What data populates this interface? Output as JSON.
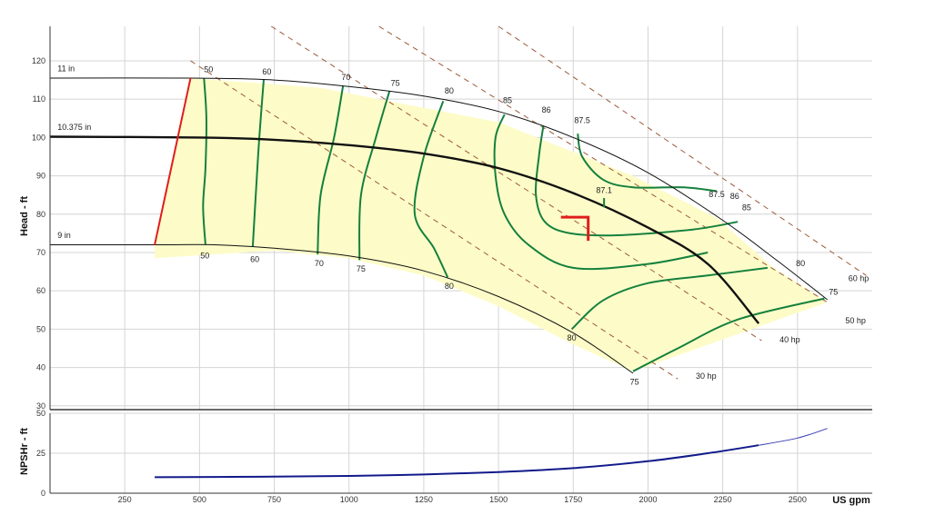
{
  "chart_data": [
    {
      "type": "line",
      "name": "head-chart",
      "ylabel": "Head - ft",
      "xlim": [
        0,
        2750
      ],
      "ylim": [
        29,
        129
      ],
      "x_ticks": [
        250,
        500,
        750,
        1000,
        1250,
        1500,
        1750,
        2000,
        2250,
        2500
      ],
      "y_ticks": [
        30,
        40,
        50,
        60,
        70,
        80,
        90,
        100,
        110,
        120
      ],
      "grid": true,
      "operating_region": [
        [
          350,
          72
        ],
        [
          470,
          115.5
        ],
        [
          900,
          113
        ],
        [
          1500,
          104
        ],
        [
          1950,
          90
        ],
        [
          2230,
          79
        ],
        [
          2420,
          66
        ],
        [
          2600,
          57
        ],
        [
          1950,
          39
        ],
        [
          1750,
          46
        ],
        [
          1500,
          56
        ],
        [
          1250,
          64
        ],
        [
          1000,
          68.5
        ],
        [
          750,
          70.5
        ],
        [
          350,
          68.5
        ]
      ],
      "impeller_curves": [
        {
          "label": "11 in",
          "points": [
            [
              0,
              115.5
            ],
            [
              470,
              115.5
            ],
            [
              750,
              115
            ],
            [
              1000,
              113.3
            ],
            [
              1250,
              110.8
            ],
            [
              1500,
              106.8
            ],
            [
              1750,
              100
            ],
            [
              2000,
              90.8
            ],
            [
              2250,
              78.4
            ],
            [
              2430,
              68
            ],
            [
              2600,
              57.7
            ]
          ]
        },
        {
          "label": "10.375 in",
          "points": [
            [
              0,
              100.2
            ],
            [
              500,
              100
            ],
            [
              750,
              99.4
            ],
            [
              1000,
              98
            ],
            [
              1250,
              95.8
            ],
            [
              1500,
              92
            ],
            [
              1750,
              85.5
            ],
            [
              2000,
              76.5
            ],
            [
              2200,
              67
            ],
            [
              2370,
              51.5
            ]
          ]
        },
        {
          "label": "9 in",
          "points": [
            [
              0,
              72
            ],
            [
              350,
              72
            ],
            [
              550,
              72
            ],
            [
              750,
              71.1
            ],
            [
              1000,
              69.1
            ],
            [
              1250,
              65.2
            ],
            [
              1500,
              58.5
            ],
            [
              1750,
              49
            ],
            [
              1950,
              38.5
            ]
          ]
        }
      ],
      "min_flow_line": [
        [
          350,
          72
        ],
        [
          470,
          115.5
        ]
      ],
      "bep_curve": [
        [
          0,
          100.2
        ],
        [
          500,
          100
        ],
        [
          750,
          99.4
        ],
        [
          1000,
          98
        ],
        [
          1250,
          95.8
        ],
        [
          1500,
          92
        ],
        [
          1750,
          85.5
        ],
        [
          2000,
          76.5
        ],
        [
          2200,
          67
        ],
        [
          2370,
          51.5
        ]
      ],
      "operating_point": {
        "flow": 1800,
        "head": 79.2
      },
      "efficiency_contours": [
        {
          "label": "50",
          "points": [
            [
              515,
              115.5
            ],
            [
              523,
              105
            ],
            [
              520,
              92
            ],
            [
              512,
              82
            ],
            [
              520,
              72
            ]
          ]
        },
        {
          "label": "60",
          "points": [
            [
              715,
              115.2
            ],
            [
              700,
              100
            ],
            [
              688,
              85
            ],
            [
              678,
              71.5
            ]
          ]
        },
        {
          "label": "70",
          "points": [
            [
              980,
              113.5
            ],
            [
              950,
              100
            ],
            [
              905,
              85
            ],
            [
              895,
              69.5
            ]
          ]
        },
        {
          "label": "75",
          "points": [
            [
              1135,
              112
            ],
            [
              1090,
              100
            ],
            [
              1040,
              85
            ],
            [
              1035,
              68
            ]
          ]
        },
        {
          "label": "80",
          "points": [
            [
              1315,
              109.5
            ],
            [
              1250,
              95
            ],
            [
              1220,
              80
            ],
            [
              1285,
              71
            ],
            [
              1330,
              63.5
            ]
          ]
        },
        {
          "label": "85",
          "points": [
            [
              1520,
              106
            ],
            [
              1490,
              100
            ],
            [
              1490,
              90
            ],
            [
              1520,
              80
            ],
            [
              1600,
              72
            ],
            [
              1750,
              66
            ],
            [
              2000,
              67
            ],
            [
              2200,
              70
            ]
          ]
        },
        {
          "label": "86",
          "points": [
            [
              1650,
              103
            ],
            [
              1635,
              95
            ],
            [
              1625,
              85
            ],
            [
              1655,
              78
            ],
            [
              1740,
              75
            ],
            [
              1900,
              74.5
            ],
            [
              2150,
              76
            ],
            [
              2300,
              78
            ]
          ]
        },
        {
          "label": "87.5",
          "points": [
            [
              1765,
              101
            ],
            [
              1780,
              95
            ],
            [
              1850,
              89
            ],
            [
              1950,
              87
            ],
            [
              2120,
              87
            ],
            [
              2230,
              86
            ]
          ]
        },
        {
          "label": "80",
          "points": [
            [
              1745,
              50
            ],
            [
              1850,
              57.5
            ],
            [
              2000,
              62
            ],
            [
              2200,
              64
            ],
            [
              2400,
              66
            ]
          ]
        },
        {
          "label": "75",
          "points": [
            [
              1950,
              39
            ],
            [
              2100,
              45
            ],
            [
              2300,
              52.5
            ],
            [
              2590,
              58
            ]
          ]
        }
      ],
      "efficiency_labels": [
        {
          "text": "50",
          "x": 530,
          "y": 117,
          "anchor": "middle"
        },
        {
          "text": "60",
          "x": 725,
          "y": 116.5,
          "anchor": "middle"
        },
        {
          "text": "70",
          "x": 990,
          "y": 115,
          "anchor": "middle"
        },
        {
          "text": "75",
          "x": 1155,
          "y": 113.5,
          "anchor": "middle"
        },
        {
          "text": "80",
          "x": 1335,
          "y": 111.5,
          "anchor": "middle"
        },
        {
          "text": "85",
          "x": 1530,
          "y": 109,
          "anchor": "middle"
        },
        {
          "text": "86",
          "x": 1660,
          "y": 106.5,
          "anchor": "middle"
        },
        {
          "text": "87.5",
          "x": 1780,
          "y": 103.8,
          "anchor": "middle"
        },
        {
          "text": "87.1",
          "x": 1853,
          "y": 85.5,
          "anchor": "middle"
        },
        {
          "text": "87.5",
          "x": 2230,
          "y": 84.5,
          "anchor": "middle"
        },
        {
          "text": "86",
          "x": 2290,
          "y": 84,
          "anchor": "middle"
        },
        {
          "text": "85",
          "x": 2330,
          "y": 81,
          "anchor": "middle"
        },
        {
          "text": "80",
          "x": 2510,
          "y": 66.5,
          "anchor": "middle"
        },
        {
          "text": "75",
          "x": 2620,
          "y": 59,
          "anchor": "middle"
        },
        {
          "text": "50",
          "x": 518,
          "y": 68.5,
          "anchor": "middle"
        },
        {
          "text": "60",
          "x": 685,
          "y": 67.5,
          "anchor": "middle"
        },
        {
          "text": "70",
          "x": 900,
          "y": 66.5,
          "anchor": "middle"
        },
        {
          "text": "75",
          "x": 1040,
          "y": 65,
          "anchor": "middle"
        },
        {
          "text": "80",
          "x": 1335,
          "y": 60.5,
          "anchor": "middle"
        },
        {
          "text": "80",
          "x": 1745,
          "y": 47,
          "anchor": "middle"
        },
        {
          "text": "75",
          "x": 1955,
          "y": 35.5,
          "anchor": "middle"
        }
      ],
      "impeller_labels": [
        {
          "text": "11 in",
          "x": 10,
          "y": 116.8
        },
        {
          "text": "10.375 in",
          "x": 10,
          "y": 101.5
        },
        {
          "text": "9 in",
          "x": 10,
          "y": 73.3
        }
      ],
      "power_lines": [
        {
          "label": "30 hp",
          "points": [
            [
              470,
              120
            ],
            [
              2100,
              37
            ]
          ],
          "label_x": 2160,
          "label_y": 37
        },
        {
          "label": "40 hp",
          "points": [
            [
              740,
              129
            ],
            [
              2380,
              47
            ]
          ],
          "label_x": 2440,
          "label_y": 46.5
        },
        {
          "label": "50 hp",
          "points": [
            [
              1100,
              129
            ],
            [
              2600,
              57
            ]
          ],
          "label_x": 2660,
          "label_y": 51.5
        },
        {
          "label": "60 hp",
          "points": [
            [
              1500,
              129
            ],
            [
              2730,
              64
            ]
          ],
          "label_x": 2670,
          "label_y": 62.5
        }
      ]
    },
    {
      "type": "line",
      "name": "npshr-chart",
      "ylabel": "NPSHr - ft",
      "xlabel": "US gpm",
      "xlim": [
        0,
        2750
      ],
      "ylim": [
        0,
        50
      ],
      "y_ticks": [
        0,
        25,
        50
      ],
      "grid": true,
      "series": [
        {
          "points": [
            [
              350,
              10
            ],
            [
              700,
              10.3
            ],
            [
              1000,
              10.8
            ],
            [
              1250,
              11.7
            ],
            [
              1500,
              13.2
            ],
            [
              1750,
              15.7
            ],
            [
              2000,
              20
            ],
            [
              2200,
              25
            ],
            [
              2370,
              30
            ]
          ]
        },
        {
          "points": [
            [
              2370,
              30
            ],
            [
              2500,
              34.5
            ],
            [
              2600,
              40.5
            ]
          ]
        }
      ]
    }
  ]
}
